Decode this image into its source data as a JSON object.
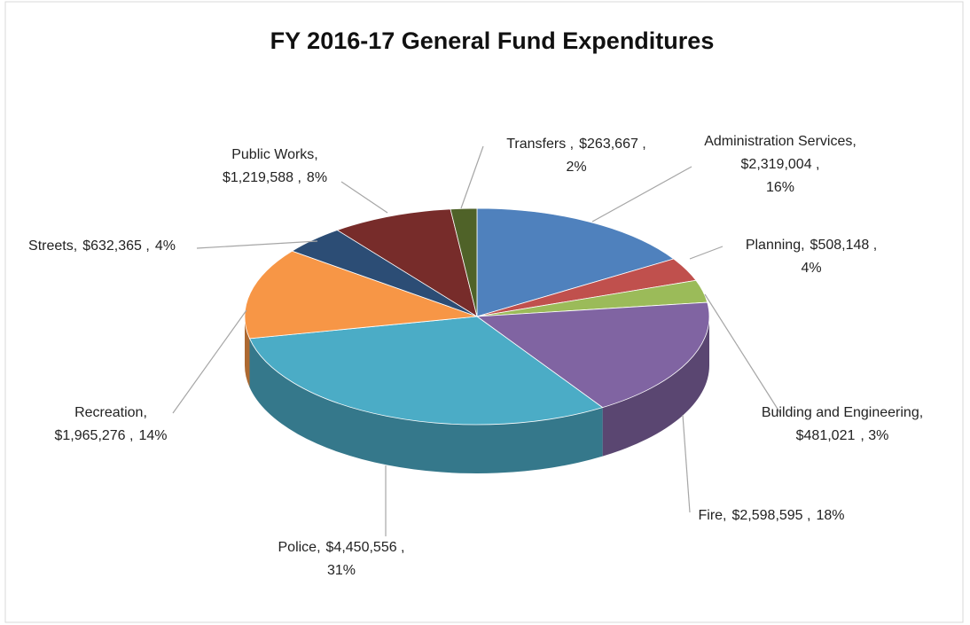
{
  "chart_data": {
    "type": "pie",
    "title": "FY 2016-17 General Fund Expenditures",
    "categories": [
      "Administration Services,",
      "Planning,",
      "Building and Engineering,",
      "Fire,",
      "Police,",
      "Recreation,",
      "Streets,",
      "Public Works,",
      "Transfers ,"
    ],
    "values": [
      2319004,
      508148,
      481021,
      2598595,
      4450556,
      1965276,
      632365,
      1219588,
      263667
    ],
    "value_labels": [
      "$2,319,004 ,",
      "$508,148 ,",
      "$481,021",
      "$2,598,595 ,",
      "$4,450,556 ,",
      "$1,965,276 ,",
      "$632,365 ,",
      "$1,219,588 ,",
      "$263,667 ,"
    ],
    "percent_labels": [
      "16%",
      "4%",
      ", 3%",
      "18%",
      "31%",
      "14%",
      "4%",
      "8%",
      "2%"
    ],
    "colors": [
      "#4f81bd",
      "#c0504d",
      "#9bbb59",
      "#8064a2",
      "#4bacc6",
      "#f79646",
      "#2c4d75",
      "#772c2a",
      "#4f6228"
    ]
  }
}
